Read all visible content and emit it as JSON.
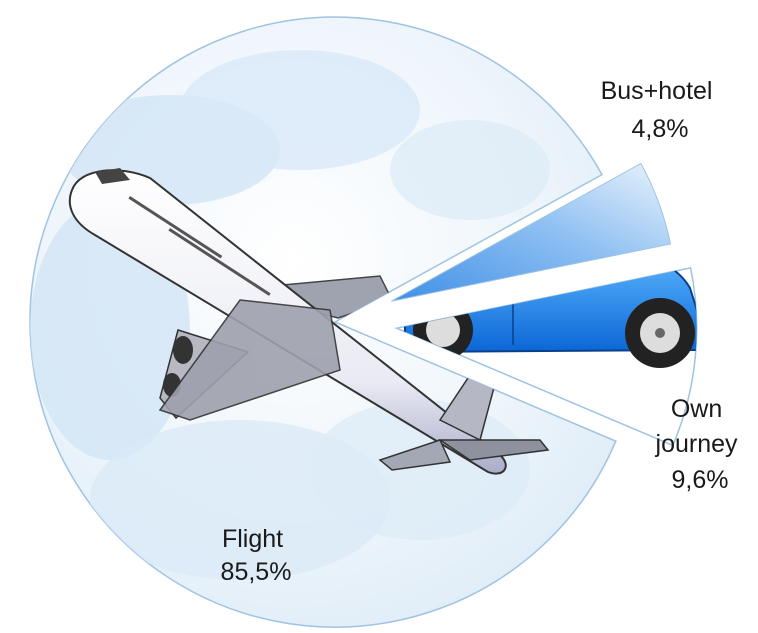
{
  "chart_data": {
    "type": "pie",
    "title": "",
    "slices": [
      {
        "label": "Flight",
        "value": 85.5,
        "value_label": "85,5%",
        "picture": "airplane-icon",
        "color": "#cfe2f3"
      },
      {
        "label": "Own journey",
        "label_lines": [
          "Own",
          "journey"
        ],
        "value": 9.6,
        "value_label": "9,6%",
        "picture": "car-icon",
        "color": "#1a7fe6"
      },
      {
        "label": "Bus+hotel",
        "value": 4.8,
        "value_label": "4,8%",
        "picture": "none",
        "color": "#6aa8ea"
      }
    ],
    "legend": "none",
    "exploded": true
  }
}
